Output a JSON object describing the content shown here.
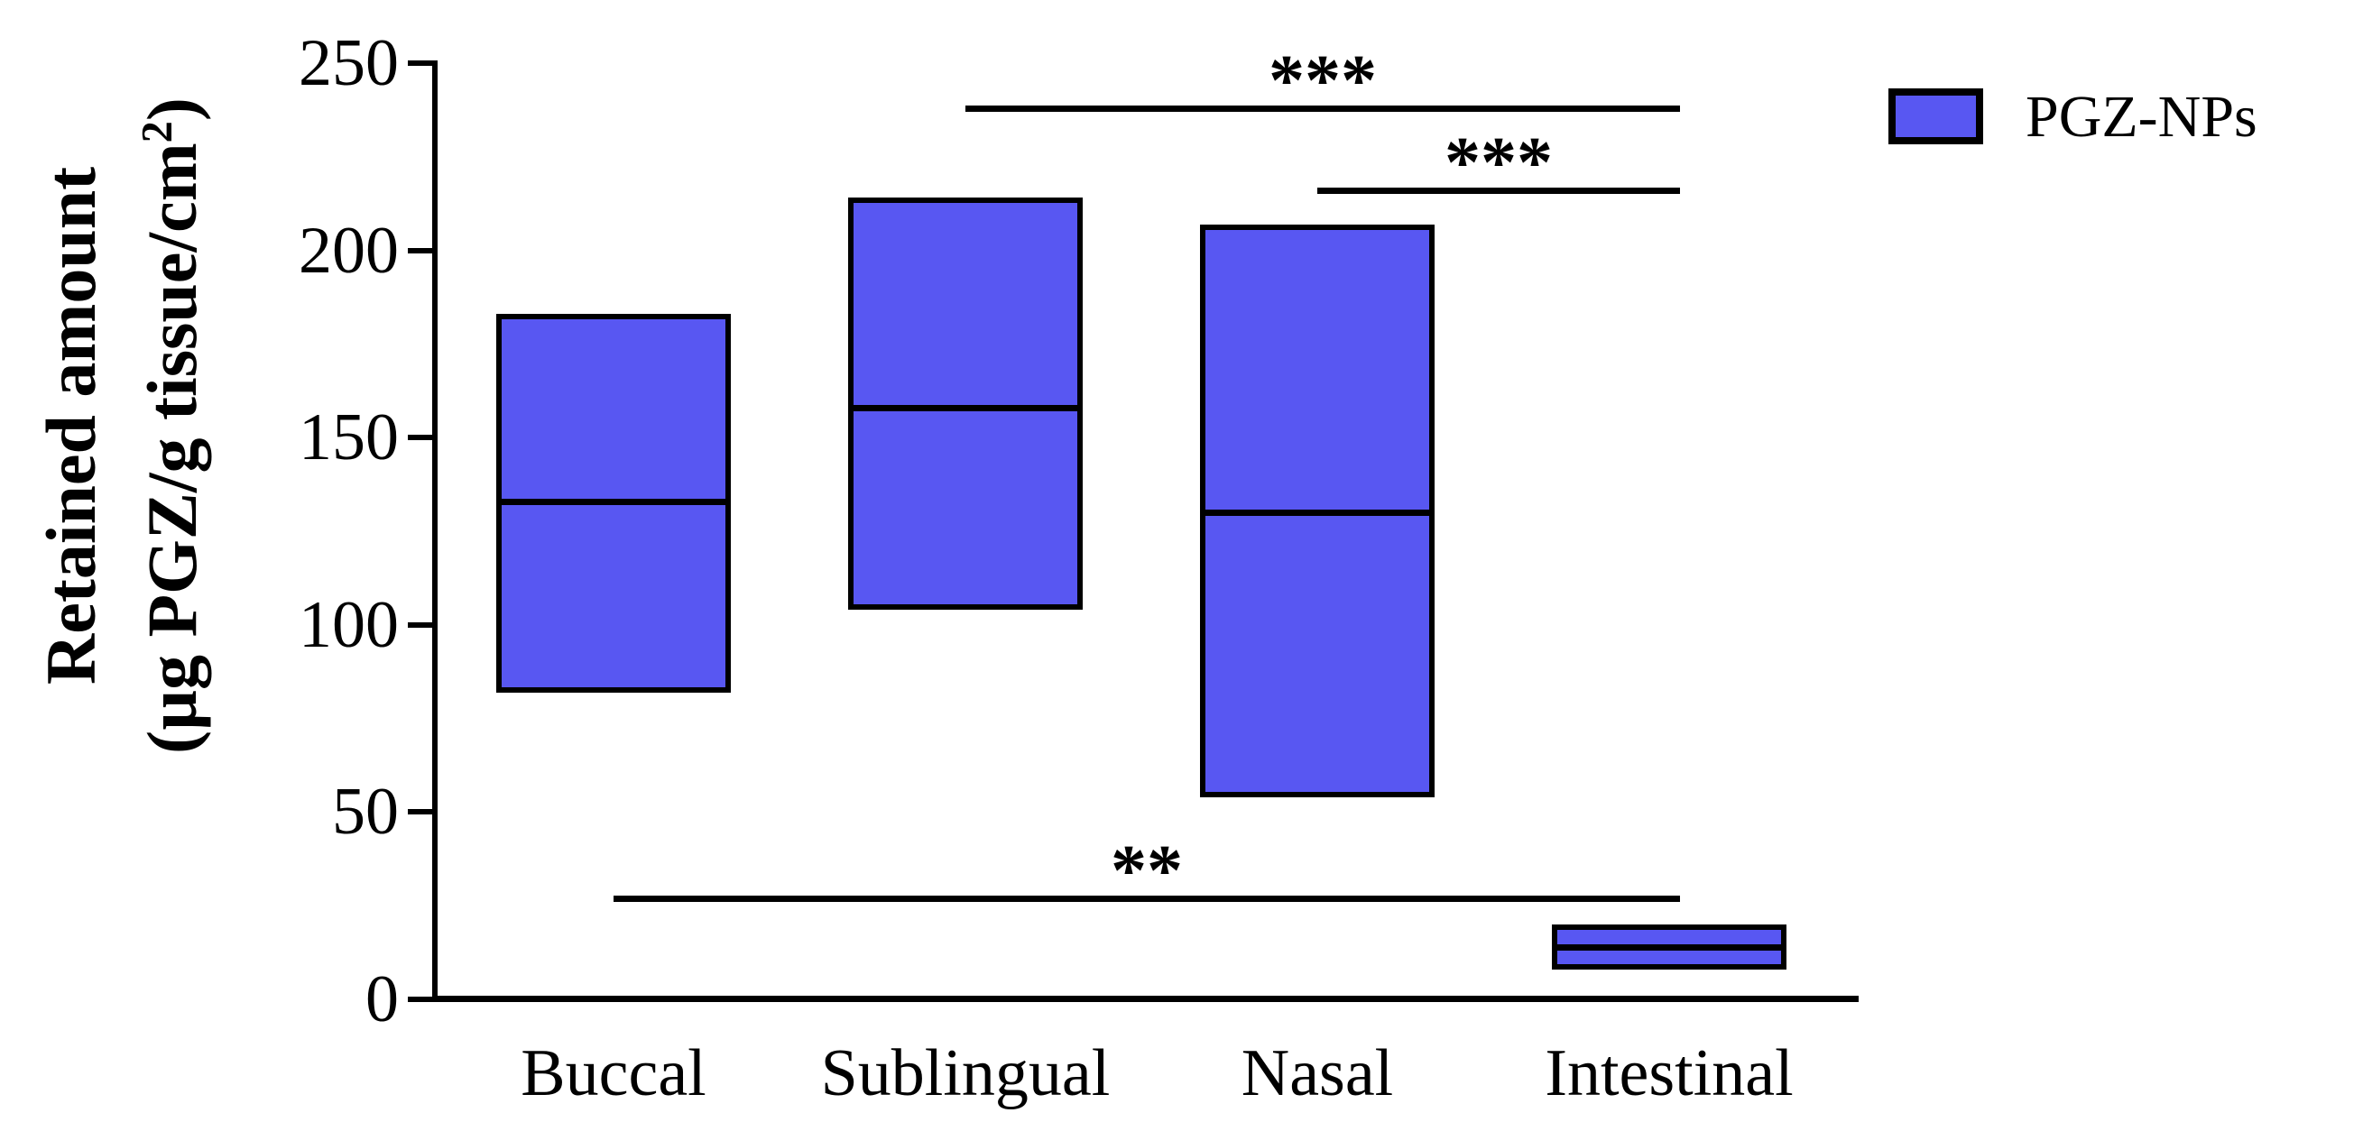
{
  "figure": {
    "background": "#ffffff",
    "y_axis_title_line1": "Retained amount",
    "y_axis_title_line2_prefix": "(µg PGZ/g tissue/cm",
    "y_axis_title_line2_sup": "2",
    "y_axis_title_line2_suffix": ")"
  },
  "legend": {
    "label": "PGZ-NPs",
    "swatch_color": "#5857F2",
    "swatch_border_color": "#000000"
  },
  "chart_data": {
    "type": "box",
    "title": "",
    "xlabel": "",
    "ylabel": "Retained amount (µg PGZ/g tissue/cm²)",
    "ylim": [
      0,
      250
    ],
    "yticks": [
      0,
      50,
      100,
      150,
      200,
      250
    ],
    "grid": false,
    "legend_position": "top-right",
    "categories": [
      "Buccal",
      "Sublingual",
      "Nasal",
      "Intestinal"
    ],
    "series": [
      {
        "name": "PGZ-NPs",
        "color": "#5857F2",
        "border_color": "#000000",
        "boxes": [
          {
            "category": "Buccal",
            "min": 82,
            "median": 133,
            "max": 183
          },
          {
            "category": "Sublingual",
            "min": 104,
            "median": 158,
            "max": 214
          },
          {
            "category": "Nasal",
            "min": 54,
            "median": 130,
            "max": 207
          },
          {
            "category": "Intestinal",
            "min": 8,
            "median": 14,
            "max": 20
          }
        ]
      }
    ],
    "significance": [
      {
        "label": "***",
        "from": "Sublingual",
        "to": "Intestinal",
        "y": 238
      },
      {
        "label": "***",
        "from": "Nasal",
        "to": "Intestinal",
        "y": 216
      },
      {
        "label": "**",
        "from": "Buccal",
        "to": "Intestinal",
        "y": 27
      }
    ]
  }
}
